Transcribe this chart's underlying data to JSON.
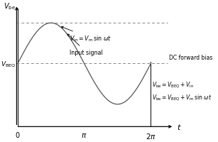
{
  "background_color": "#ffffff",
  "line_color": "#555555",
  "dashed_color": "#888888",
  "text_color": "#000000",
  "vbeq": 0.0,
  "vm": 1.0,
  "pi": 3.14159265,
  "x_axis_y": -1.55,
  "y_axis_x": 0.0,
  "xlim_left": -0.15,
  "xlim_right": 8.8,
  "ylim_bottom": -1.85,
  "ylim_top": 1.55
}
